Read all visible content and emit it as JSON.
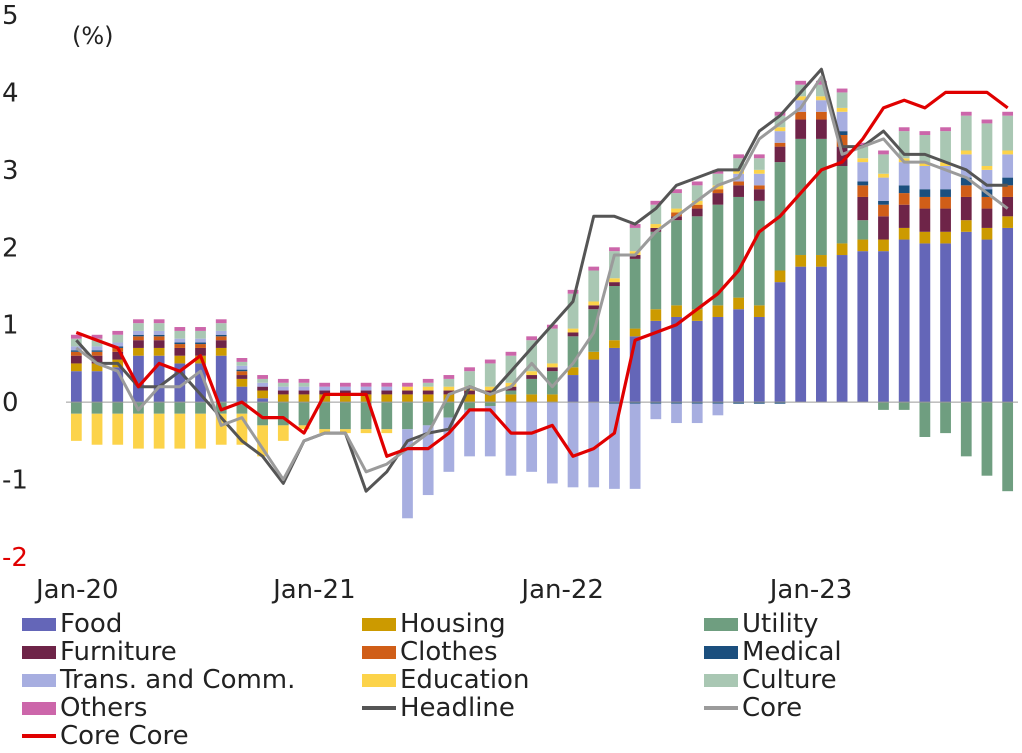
{
  "chart_data": {
    "type": "bar",
    "unit_label": "(%)",
    "y_ticks": [
      "5",
      "4",
      "3",
      "2",
      "1",
      "0",
      "-1",
      "-2"
    ],
    "ylim": [
      -2,
      5
    ],
    "x_ticks": [
      "Jan-20",
      "Jan-21",
      "Jan-22",
      "Jan-23"
    ],
    "x_tick_index": [
      0,
      12,
      24,
      36
    ],
    "n_months": 46,
    "grid": false,
    "stacked": true,
    "legend_position": "bottom",
    "series": [
      {
        "name": "Food",
        "color": "#6466b8",
        "kind": "bar",
        "values": [
          0.4,
          0.4,
          0.45,
          0.6,
          0.6,
          0.5,
          0.5,
          0.6,
          0.2,
          0.05,
          0.0,
          0.0,
          0.0,
          0.0,
          0.0,
          0.0,
          0.0,
          0.0,
          0.0,
          0.0,
          0.0,
          0.0,
          0.0,
          0.0,
          0.35,
          0.55,
          0.7,
          0.85,
          1.05,
          1.1,
          1.05,
          1.1,
          1.2,
          1.1,
          1.55,
          1.75,
          1.75,
          1.9,
          1.95,
          1.95,
          2.1,
          2.05,
          2.05,
          2.2,
          2.1,
          2.25
        ]
      },
      {
        "name": "Housing",
        "color": "#cc9a00",
        "kind": "bar",
        "values": [
          0.1,
          0.1,
          0.1,
          0.1,
          0.1,
          0.1,
          0.1,
          0.1,
          0.1,
          0.1,
          0.1,
          0.1,
          0.1,
          0.1,
          0.1,
          0.1,
          0.1,
          0.1,
          0.1,
          0.1,
          0.1,
          0.1,
          0.1,
          0.1,
          0.1,
          0.1,
          0.1,
          0.1,
          0.15,
          0.15,
          0.15,
          0.15,
          0.15,
          0.15,
          0.15,
          0.15,
          0.15,
          0.15,
          0.15,
          0.15,
          0.15,
          0.15,
          0.15,
          0.15,
          0.15,
          0.15
        ]
      },
      {
        "name": "Utility",
        "color": "#6f9e80",
        "kind": "bar",
        "values": [
          -0.15,
          -0.15,
          -0.15,
          -0.15,
          -0.15,
          -0.15,
          -0.15,
          -0.15,
          -0.15,
          -0.3,
          -0.3,
          -0.3,
          -0.35,
          -0.35,
          -0.35,
          -0.35,
          -0.35,
          -0.3,
          -0.2,
          -0.1,
          -0.05,
          0.05,
          0.2,
          0.3,
          0.4,
          0.55,
          0.7,
          0.9,
          1.0,
          1.1,
          1.2,
          1.3,
          1.3,
          1.35,
          1.4,
          1.5,
          1.5,
          1.0,
          0.25,
          -0.1,
          -0.1,
          -0.45,
          -0.4,
          -0.7,
          -0.95,
          -1.15
        ]
      },
      {
        "name": "Furniture",
        "color": "#6e2448",
        "kind": "bar",
        "values": [
          0.1,
          0.1,
          0.1,
          0.1,
          0.1,
          0.1,
          0.1,
          0.1,
          0.05,
          0.05,
          0.05,
          0.05,
          0.05,
          0.05,
          0.05,
          0.05,
          0.05,
          0.05,
          0.05,
          0.05,
          0.05,
          0.05,
          0.05,
          0.05,
          0.05,
          0.05,
          0.05,
          0.05,
          0.05,
          0.05,
          0.1,
          0.15,
          0.15,
          0.15,
          0.2,
          0.25,
          0.25,
          0.25,
          0.3,
          0.3,
          0.3,
          0.3,
          0.3,
          0.3,
          0.25,
          0.25
        ]
      },
      {
        "name": "Clothes",
        "color": "#d05e18",
        "kind": "bar",
        "values": [
          0.05,
          0.05,
          0.05,
          0.05,
          0.05,
          0.05,
          0.05,
          0.05,
          0.05,
          0.0,
          0.0,
          0.0,
          0.0,
          0.0,
          0.0,
          0.0,
          0.0,
          0.0,
          0.0,
          0.0,
          0.0,
          0.0,
          0.0,
          0.0,
          0.0,
          0.0,
          0.0,
          0.0,
          0.0,
          0.05,
          0.05,
          0.05,
          0.05,
          0.05,
          0.05,
          0.1,
          0.1,
          0.15,
          0.15,
          0.15,
          0.15,
          0.15,
          0.15,
          0.15,
          0.15,
          0.15
        ]
      },
      {
        "name": "Medical",
        "color": "#1b4f7e",
        "kind": "bar",
        "values": [
          0.02,
          0.02,
          0.02,
          0.02,
          0.02,
          0.02,
          0.02,
          0.02,
          0.02,
          0.0,
          0.0,
          0.0,
          0.0,
          0.0,
          0.0,
          0.0,
          0.0,
          0.0,
          0.0,
          0.0,
          0.0,
          0.0,
          0.0,
          0.0,
          0.0,
          0.0,
          -0.02,
          -0.02,
          -0.02,
          -0.02,
          -0.02,
          -0.02,
          -0.02,
          -0.02,
          -0.02,
          0.0,
          0.0,
          0.05,
          0.05,
          0.05,
          0.1,
          0.1,
          0.1,
          0.1,
          0.1,
          0.1
        ]
      },
      {
        "name": "Trans. and Comm.",
        "color": "#a7aee0",
        "kind": "bar",
        "values": [
          0.05,
          0.05,
          0.05,
          0.05,
          0.05,
          0.05,
          0.05,
          0.05,
          0.05,
          0.05,
          0.05,
          0.05,
          0.05,
          0.05,
          0.05,
          0.05,
          -1.15,
          -0.9,
          -0.7,
          -0.6,
          -0.65,
          -0.95,
          -0.9,
          -1.05,
          -1.1,
          -1.1,
          -1.1,
          -1.1,
          -0.2,
          -0.25,
          -0.25,
          -0.15,
          0.1,
          0.15,
          0.15,
          0.15,
          0.15,
          0.25,
          0.25,
          0.3,
          0.3,
          0.3,
          0.3,
          0.3,
          0.25,
          0.3
        ]
      },
      {
        "name": "Education",
        "color": "#fcd34a",
        "kind": "bar",
        "values": [
          -0.35,
          -0.4,
          -0.4,
          -0.45,
          -0.45,
          -0.45,
          -0.45,
          -0.4,
          -0.4,
          -0.4,
          -0.2,
          -0.05,
          -0.05,
          -0.05,
          -0.05,
          -0.05,
          0.05,
          0.05,
          0.05,
          0.05,
          0.05,
          0.05,
          0.05,
          0.05,
          0.05,
          0.05,
          0.05,
          0.05,
          0.05,
          0.05,
          0.05,
          0.05,
          0.05,
          0.05,
          0.05,
          0.05,
          0.05,
          0.05,
          0.05,
          0.05,
          0.05,
          0.05,
          0.05,
          0.05,
          0.05,
          0.05
        ]
      },
      {
        "name": "Culture",
        "color": "#a9c7b3",
        "kind": "bar",
        "values": [
          0.1,
          0.1,
          0.1,
          0.1,
          0.1,
          0.1,
          0.1,
          0.1,
          0.05,
          0.05,
          0.05,
          0.05,
          0.0,
          0.0,
          0.0,
          0.0,
          0.0,
          0.05,
          0.1,
          0.2,
          0.3,
          0.35,
          0.4,
          0.45,
          0.45,
          0.4,
          0.35,
          0.3,
          0.25,
          0.2,
          0.2,
          0.15,
          0.15,
          0.15,
          0.15,
          0.15,
          0.15,
          0.2,
          0.15,
          0.25,
          0.35,
          0.35,
          0.4,
          0.45,
          0.55,
          0.45
        ]
      },
      {
        "name": "Others",
        "color": "#cc66aa",
        "kind": "bar",
        "values": [
          0.05,
          0.05,
          0.05,
          0.05,
          0.05,
          0.05,
          0.05,
          0.05,
          0.05,
          0.05,
          0.05,
          0.05,
          0.05,
          0.05,
          0.05,
          0.05,
          0.05,
          0.05,
          0.05,
          0.05,
          0.05,
          0.05,
          0.05,
          0.05,
          0.05,
          0.05,
          0.05,
          0.05,
          0.05,
          0.05,
          0.05,
          0.05,
          0.05,
          0.05,
          0.05,
          0.05,
          0.05,
          0.05,
          0.05,
          0.05,
          0.05,
          0.05,
          0.05,
          0.05,
          0.05,
          0.05
        ]
      },
      {
        "name": "Headline",
        "color": "#555555",
        "kind": "line",
        "values": [
          0.8,
          0.5,
          0.5,
          0.2,
          0.2,
          0.4,
          0.1,
          -0.2,
          -0.5,
          -0.7,
          -1.05,
          -0.5,
          -0.4,
          -0.4,
          -1.15,
          -0.9,
          -0.5,
          -0.4,
          -0.35,
          0.2,
          0.1,
          0.4,
          0.7,
          1.0,
          1.3,
          2.4,
          2.4,
          2.3,
          2.5,
          2.8,
          2.9,
          3.0,
          3.0,
          3.5,
          3.7,
          4.0,
          4.3,
          3.3,
          3.3,
          3.5,
          3.2,
          3.2,
          3.1,
          3.0,
          2.8,
          2.8
        ]
      },
      {
        "name": "Core",
        "color": "#9b9b9b",
        "kind": "line",
        "values": [
          0.7,
          0.5,
          0.4,
          -0.1,
          0.2,
          0.2,
          0.4,
          -0.3,
          -0.2,
          -0.6,
          -1.0,
          -0.5,
          -0.4,
          -0.4,
          -0.9,
          -0.8,
          -0.6,
          -0.4,
          0.1,
          0.2,
          0.1,
          0.2,
          0.5,
          0.2,
          0.5,
          0.9,
          1.9,
          1.9,
          2.2,
          2.4,
          2.6,
          2.8,
          2.9,
          3.4,
          3.6,
          3.8,
          4.2,
          3.2,
          3.3,
          3.4,
          3.1,
          3.1,
          3.0,
          2.9,
          2.7,
          2.5
        ]
      },
      {
        "name": "Core Core",
        "color": "#e00000",
        "kind": "line",
        "values": [
          0.9,
          0.8,
          0.7,
          0.2,
          0.5,
          0.4,
          0.6,
          -0.1,
          0.0,
          -0.2,
          -0.2,
          -0.4,
          0.1,
          0.1,
          0.1,
          -0.7,
          -0.6,
          -0.6,
          -0.4,
          -0.1,
          -0.1,
          -0.4,
          -0.4,
          -0.3,
          -0.7,
          -0.6,
          -0.4,
          0.8,
          0.9,
          1.0,
          1.2,
          1.4,
          1.7,
          2.2,
          2.4,
          2.7,
          3.0,
          3.1,
          3.4,
          3.8,
          3.9,
          3.8,
          4.0,
          4.0,
          4.0,
          3.8
        ]
      }
    ]
  }
}
